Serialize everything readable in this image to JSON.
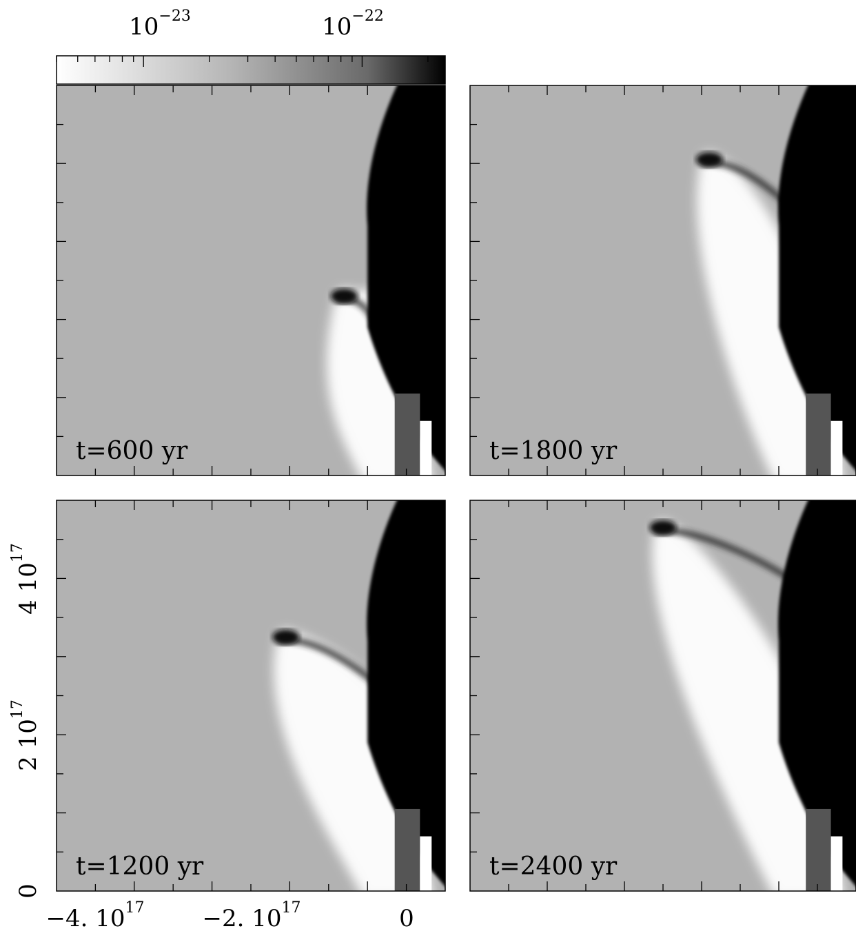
{
  "colorbar": {
    "scale": "log",
    "range": [
      4e-24,
      2.4e-22
    ],
    "gradient": [
      "#ffffff",
      "#b0b0b0",
      "#000000"
    ],
    "tick_labels": [
      {
        "base": "10",
        "exp": "−23",
        "value": 1e-23
      },
      {
        "base": "10",
        "exp": "−22",
        "value": 1e-22
      }
    ]
  },
  "chart_data": {
    "type": "heatmap",
    "xlim": [
      -4.9e+17,
      2e+16
    ],
    "ylim": [
      0,
      5e+17
    ],
    "x_ticks": [
      {
        "value": -4e+17,
        "text": "−4. 10",
        "exp": "17"
      },
      {
        "value": -2e+17,
        "text": "−2. 10",
        "exp": "17"
      },
      {
        "value": 0,
        "text": "0",
        "exp": ""
      }
    ],
    "y_ticks": [
      {
        "value": 0,
        "text": "0",
        "exp": ""
      },
      {
        "value": 2e+17,
        "text": "2 10",
        "exp": "17"
      },
      {
        "value": 4e+17,
        "text": "4 10",
        "exp": "17"
      }
    ],
    "panels": [
      {
        "id": "p600",
        "label": "t=600 yr"
      },
      {
        "id": "p1800",
        "label": "t=1800 yr"
      },
      {
        "id": "p1200",
        "label": "t=1200 yr"
      },
      {
        "id": "p2400",
        "label": "t=2400 yr"
      }
    ]
  },
  "colors": {
    "background": "#b2b2b2",
    "dense": "#000000",
    "cavity": "#ffffff",
    "jet": "#555555"
  }
}
